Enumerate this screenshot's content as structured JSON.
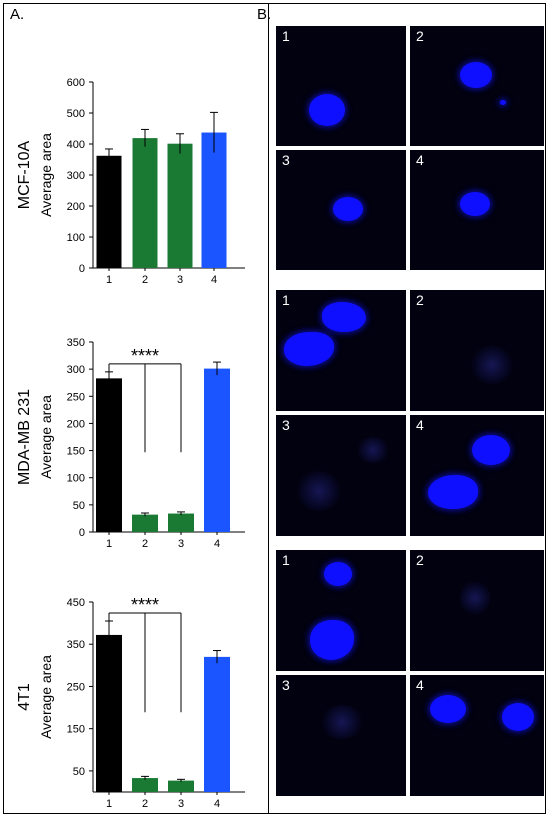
{
  "panels": {
    "a_label": "A.",
    "b_label": "B."
  },
  "chart_data": [
    {
      "type": "bar",
      "row_label": "MCF-10A",
      "ylabel": "Average area",
      "categories": [
        "1",
        "2",
        "3",
        "4"
      ],
      "values": [
        362,
        419,
        401,
        437
      ],
      "errors": [
        22,
        28,
        32,
        65
      ],
      "colors": [
        "#000000",
        "#1a7a34",
        "#1a7a34",
        "#1a55ff"
      ],
      "ylim": [
        0,
        600
      ],
      "yticks": [
        0,
        100,
        200,
        300,
        400,
        500,
        600
      ],
      "significance": null
    },
    {
      "type": "bar",
      "row_label": "MDA-MB 231",
      "ylabel": "Average area",
      "categories": [
        "1",
        "2",
        "3",
        "4"
      ],
      "values": [
        283,
        32,
        34,
        301
      ],
      "errors": [
        12,
        3,
        3,
        12
      ],
      "colors": [
        "#000000",
        "#1a7a34",
        "#1a7a34",
        "#1a55ff"
      ],
      "ylim": [
        0,
        350
      ],
      "yticks": [
        0,
        50,
        100,
        150,
        200,
        250,
        300,
        350
      ],
      "significance": {
        "label": "****",
        "from": 0,
        "to": [
          1,
          2
        ]
      }
    },
    {
      "type": "bar",
      "row_label": "4T1",
      "ylabel": "Average area",
      "categories": [
        "1",
        "2",
        "3",
        "4"
      ],
      "values": [
        372,
        33,
        27,
        320
      ],
      "errors": [
        33,
        4,
        3,
        15
      ],
      "colors": [
        "#000000",
        "#1a7a34",
        "#1a7a34",
        "#1a55ff"
      ],
      "ylim": [
        0,
        450
      ],
      "yticks": [
        50,
        150,
        250,
        350,
        450
      ],
      "significance": {
        "label": "****",
        "from": 0,
        "to": [
          1,
          2
        ]
      }
    }
  ],
  "micrographs": [
    {
      "row": "MCF-10A",
      "tiles": [
        {
          "number": "1",
          "colors": {
            "blob": "#0f0fff"
          }
        },
        {
          "number": "2"
        },
        {
          "number": "3"
        },
        {
          "number": "4"
        }
      ]
    },
    {
      "row": "MDA-MB 231",
      "tiles": [
        {
          "number": "1"
        },
        {
          "number": "2"
        },
        {
          "number": "3"
        },
        {
          "number": "4"
        }
      ]
    },
    {
      "row": "4T1",
      "tiles": [
        {
          "number": "1"
        },
        {
          "number": "2"
        },
        {
          "number": "3"
        },
        {
          "number": "4"
        }
      ]
    }
  ]
}
